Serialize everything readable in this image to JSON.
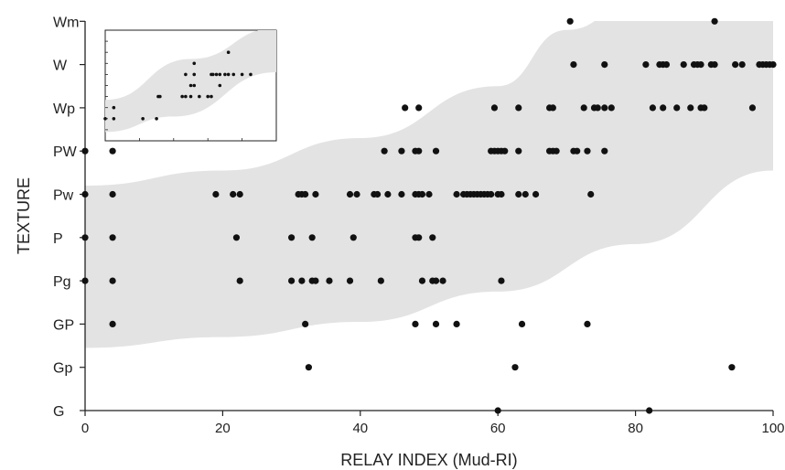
{
  "chart_data": {
    "type": "scatter",
    "title": "",
    "xlabel": "RELAY INDEX (Mud-RI)",
    "ylabel": "TEXTURE",
    "xlim": [
      0,
      100
    ],
    "x_ticks": [
      "0",
      "20",
      "40",
      "60",
      "80",
      "100"
    ],
    "y_categories": [
      "G",
      "Gp",
      "GP",
      "Pg",
      "P",
      "Pw",
      "PW",
      "Wp",
      "W",
      "Wm"
    ],
    "grid": false,
    "legend": "none",
    "band": {
      "description": "grey trend band",
      "color": "#e3e3e3",
      "lower": [
        [
          0,
          1.45
        ],
        [
          20,
          1.7
        ],
        [
          40,
          2.05
        ],
        [
          60,
          2.75
        ],
        [
          80,
          3.85
        ],
        [
          100,
          5.55
        ]
      ],
      "upper": [
        [
          0,
          5.2
        ],
        [
          20,
          5.55
        ],
        [
          40,
          6.3
        ],
        [
          60,
          7.5
        ],
        [
          70,
          8.8
        ],
        [
          80,
          9.45
        ],
        [
          100,
          9.45
        ]
      ]
    },
    "series": [
      {
        "points": [
          [
            0,
            6
          ],
          [
            4,
            6
          ],
          [
            43.5,
            6
          ],
          [
            46,
            6
          ],
          [
            48,
            6
          ],
          [
            48.5,
            6
          ],
          [
            51,
            6
          ],
          [
            59,
            6
          ],
          [
            59.5,
            6
          ],
          [
            60,
            6
          ],
          [
            60.5,
            6
          ],
          [
            61,
            6
          ],
          [
            63,
            6
          ],
          [
            67.5,
            6
          ],
          [
            68,
            6
          ],
          [
            68.5,
            6
          ],
          [
            71,
            6
          ],
          [
            71.5,
            6
          ],
          [
            73,
            6
          ],
          [
            75.5,
            6
          ],
          [
            0,
            5
          ],
          [
            4,
            5
          ],
          [
            19,
            5
          ],
          [
            21.5,
            5
          ],
          [
            22.5,
            5
          ],
          [
            31,
            5
          ],
          [
            31.5,
            5
          ],
          [
            32,
            5
          ],
          [
            33.5,
            5
          ],
          [
            38.5,
            5
          ],
          [
            39.5,
            5
          ],
          [
            42,
            5
          ],
          [
            42.5,
            5
          ],
          [
            44,
            5
          ],
          [
            46,
            5
          ],
          [
            48,
            5
          ],
          [
            48.5,
            5
          ],
          [
            49,
            5
          ],
          [
            50,
            5
          ],
          [
            54,
            5
          ],
          [
            55,
            5
          ],
          [
            55.5,
            5
          ],
          [
            56,
            5
          ],
          [
            56.5,
            5
          ],
          [
            57,
            5
          ],
          [
            57.5,
            5
          ],
          [
            58,
            5
          ],
          [
            58.5,
            5
          ],
          [
            59,
            5
          ],
          [
            60,
            5
          ],
          [
            60.5,
            5
          ],
          [
            63,
            5
          ],
          [
            64,
            5
          ],
          [
            65.5,
            5
          ],
          [
            73.5,
            5
          ],
          [
            0,
            4
          ],
          [
            4,
            4
          ],
          [
            22,
            4
          ],
          [
            30,
            4
          ],
          [
            33,
            4
          ],
          [
            39,
            4
          ],
          [
            48,
            4
          ],
          [
            48.5,
            4
          ],
          [
            50.5,
            4
          ],
          [
            0,
            3
          ],
          [
            4,
            3
          ],
          [
            22.5,
            3
          ],
          [
            30,
            3
          ],
          [
            31.5,
            3
          ],
          [
            33,
            3
          ],
          [
            33.5,
            3
          ],
          [
            35.5,
            3
          ],
          [
            38.5,
            3
          ],
          [
            43,
            3
          ],
          [
            49,
            3
          ],
          [
            50.5,
            3
          ],
          [
            51,
            3
          ],
          [
            52,
            3
          ],
          [
            60.5,
            3
          ],
          [
            4,
            2
          ],
          [
            32,
            2
          ],
          [
            48,
            2
          ],
          [
            51,
            2
          ],
          [
            54,
            2
          ],
          [
            63.5,
            2
          ],
          [
            73,
            2
          ],
          [
            32.5,
            1
          ],
          [
            62.5,
            1
          ],
          [
            94,
            1
          ],
          [
            60,
            0
          ],
          [
            82,
            0
          ],
          [
            70.5,
            9
          ],
          [
            91.5,
            9
          ],
          [
            71,
            8
          ],
          [
            75.5,
            8
          ],
          [
            81.5,
            8
          ],
          [
            83.5,
            8
          ],
          [
            84,
            8
          ],
          [
            84.5,
            8
          ],
          [
            87,
            8
          ],
          [
            88.5,
            8
          ],
          [
            89,
            8
          ],
          [
            89.5,
            8
          ],
          [
            91,
            8
          ],
          [
            91.5,
            8
          ],
          [
            94.5,
            8
          ],
          [
            95.5,
            8
          ],
          [
            98,
            8
          ],
          [
            98.5,
            8
          ],
          [
            99,
            8
          ],
          [
            99.5,
            8
          ],
          [
            100,
            8
          ],
          [
            46.5,
            7
          ],
          [
            48.5,
            7
          ],
          [
            59.5,
            7
          ],
          [
            63,
            7
          ],
          [
            67.5,
            7
          ],
          [
            68,
            7
          ],
          [
            72.5,
            7
          ],
          [
            74,
            7
          ],
          [
            74.5,
            7
          ],
          [
            75.5,
            7
          ],
          [
            76.5,
            7
          ],
          [
            82.5,
            7
          ],
          [
            84,
            7
          ],
          [
            86,
            7
          ],
          [
            88,
            7
          ],
          [
            89.5,
            7
          ],
          [
            90,
            7
          ],
          [
            97,
            7
          ]
        ]
      }
    ],
    "inset": {
      "band": {
        "lower": [
          [
            0,
            0.8
          ],
          [
            40,
            2.2
          ],
          [
            100,
            6.2
          ]
        ],
        "upper": [
          [
            0,
            3.7
          ],
          [
            50,
            7.4
          ],
          [
            100,
            10.2
          ]
        ]
      },
      "points": [
        [
          0,
          2
        ],
        [
          5,
          2
        ],
        [
          5,
          3
        ],
        [
          22,
          2
        ],
        [
          30,
          2
        ],
        [
          31,
          4
        ],
        [
          32,
          4
        ],
        [
          45,
          4
        ],
        [
          47,
          4
        ],
        [
          47,
          6
        ],
        [
          50,
          4
        ],
        [
          50,
          5
        ],
        [
          52,
          5
        ],
        [
          52,
          6
        ],
        [
          52,
          7
        ],
        [
          55,
          4
        ],
        [
          60,
          4
        ],
        [
          62,
          4
        ],
        [
          62,
          6
        ],
        [
          63,
          6
        ],
        [
          65,
          6
        ],
        [
          67,
          5
        ],
        [
          67,
          6
        ],
        [
          70,
          6
        ],
        [
          72,
          6
        ],
        [
          75,
          6
        ],
        [
          72,
          8
        ],
        [
          80,
          6
        ],
        [
          85,
          6
        ]
      ]
    }
  }
}
